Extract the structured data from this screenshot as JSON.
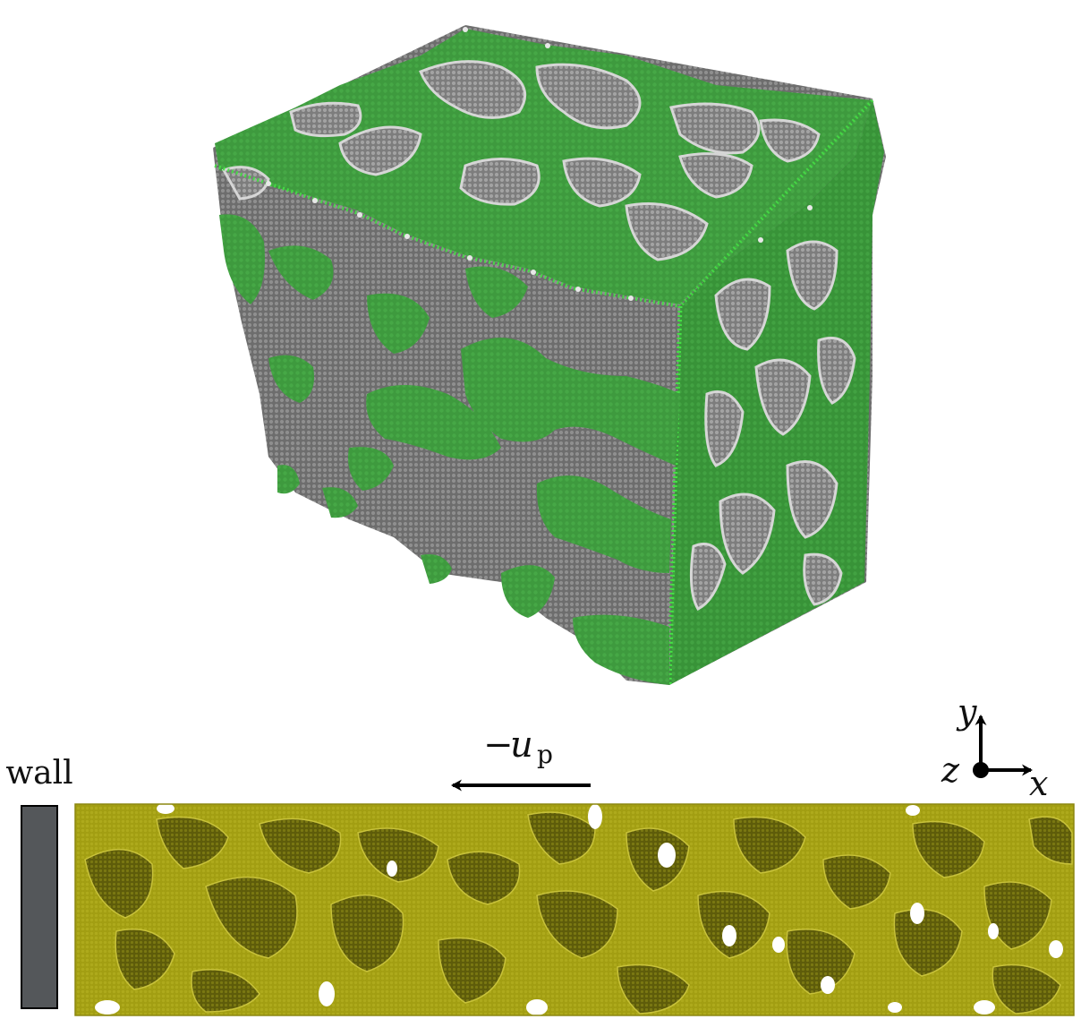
{
  "labels": {
    "wall": "wall",
    "velocity_sign": "−",
    "velocity_symbol": "u",
    "velocity_subscript": "p",
    "axis_x": "x",
    "axis_y": "y",
    "axis_z": "z"
  },
  "colors": {
    "cube_surface": "#3e9a3e",
    "cube_edge_particles": "#39e639",
    "cube_pores": "#8a8a8a",
    "foam_solid": "#a6a214",
    "foam_pore": "#6c6a0e",
    "wall": "#54575a",
    "arrow": "#000000"
  },
  "icons": {
    "cube": "porous-foam-cube-3d",
    "slab": "porous-foam-slab-2d",
    "arrow": "left-arrow",
    "axes": "coordinate-axes-icon"
  }
}
